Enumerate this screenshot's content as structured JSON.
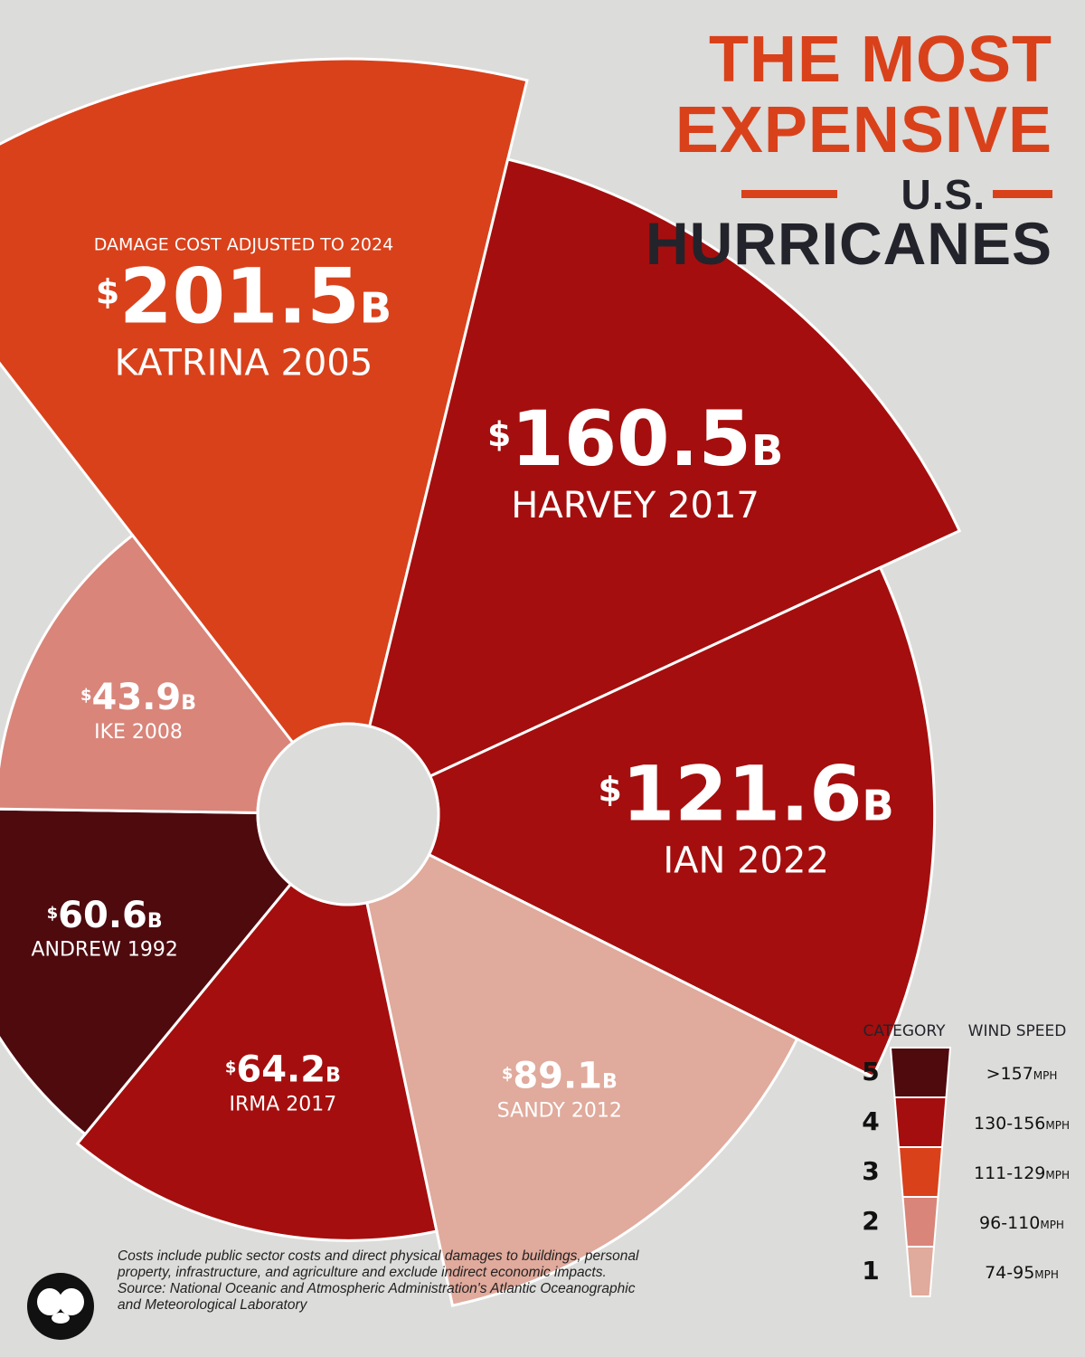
{
  "title": {
    "line1": "THE MOST",
    "line2": "EXPENSIVE",
    "line3": "U.S.",
    "line4": "HURRICANES"
  },
  "subtitle": "DAMAGE COST ADJUSTED TO 2024",
  "colors": {
    "cat5": "#4f0a0e",
    "cat4": "#a50e0e",
    "cat3": "#d9411b",
    "cat2": "#d9857a",
    "cat1": "#e0aa9c",
    "title_accent": "#d9411b",
    "title_dark": "#23232b",
    "background": "#dcdcda"
  },
  "chart_data": {
    "type": "pie",
    "subtype": "polar-area",
    "unit": "B",
    "currency": "$",
    "slices": [
      {
        "name": "KATRINA 2005",
        "value": 201.5,
        "label": "201.5",
        "category": 3
      },
      {
        "name": "HARVEY 2017",
        "value": 160.5,
        "label": "160.5",
        "category": 4
      },
      {
        "name": "IAN 2022",
        "value": 121.6,
        "label": "121.6",
        "category": 4
      },
      {
        "name": "SANDY 2012",
        "value": 89.1,
        "label": "89.1",
        "category": 1
      },
      {
        "name": "IRMA 2017",
        "value": 64.2,
        "label": "64.2",
        "category": 4
      },
      {
        "name": "ANDREW 1992",
        "value": 60.6,
        "label": "60.6",
        "category": 5
      },
      {
        "name": "IKE 2008",
        "value": 43.9,
        "label": "43.9",
        "category": 2
      }
    ]
  },
  "legend": {
    "category_header": "CATEGORY",
    "wind_header": "WIND SPEED",
    "unit": "MPH",
    "items": [
      {
        "category": "5",
        "speed": ">157"
      },
      {
        "category": "4",
        "speed": "130-156"
      },
      {
        "category": "3",
        "speed": "111-129"
      },
      {
        "category": "2",
        "speed": "96-110"
      },
      {
        "category": "1",
        "speed": "74-95"
      }
    ]
  },
  "footnote": {
    "line1": "Costs include public sector costs and direct physical damages to buildings, personal",
    "line2": "property, infrastructure, and agriculture and exclude indirect economic impacts.",
    "line3": "Source: National Oceanic and Atmospheric Administration's Atlantic Oceanographic",
    "line4": "and Meteorological Laboratory"
  }
}
